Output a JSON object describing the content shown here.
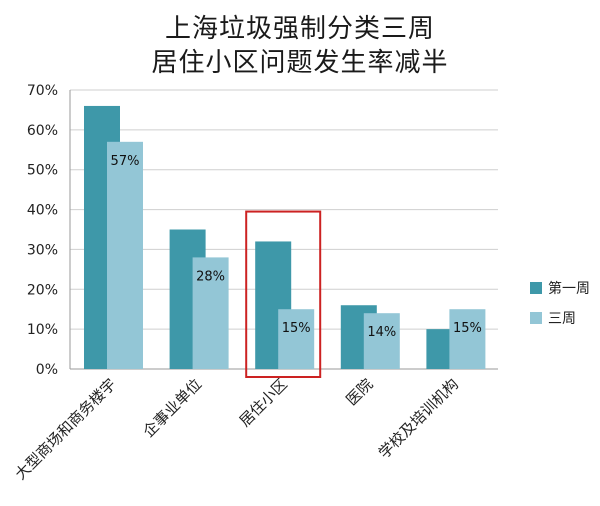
{
  "chart_data": {
    "type": "bar",
    "title": [
      "上海垃圾强制分类三周",
      "居住小区问题发生率减半"
    ],
    "categories": [
      "大型商场和商务楼宇",
      "企事业单位",
      "居住小区",
      "医院",
      "学校及培训机构"
    ],
    "series": [
      {
        "name": "第一周",
        "values": [
          66,
          35,
          32,
          16,
          10
        ],
        "color": "#3e98a9"
      },
      {
        "name": "三周",
        "values": [
          57,
          28,
          15,
          14,
          15
        ],
        "color": "#93c6d6"
      }
    ],
    "data_labels": [
      "57%",
      "28%",
      "15%",
      "14%",
      "15%"
    ],
    "yticks": [
      "0%",
      "10%",
      "20%",
      "30%",
      "40%",
      "50%",
      "60%",
      "70%"
    ],
    "ylim": [
      0,
      70
    ],
    "grid": true,
    "legend_position": "right",
    "highlight_category": "居住小区",
    "highlight_color": "#cc2222"
  }
}
